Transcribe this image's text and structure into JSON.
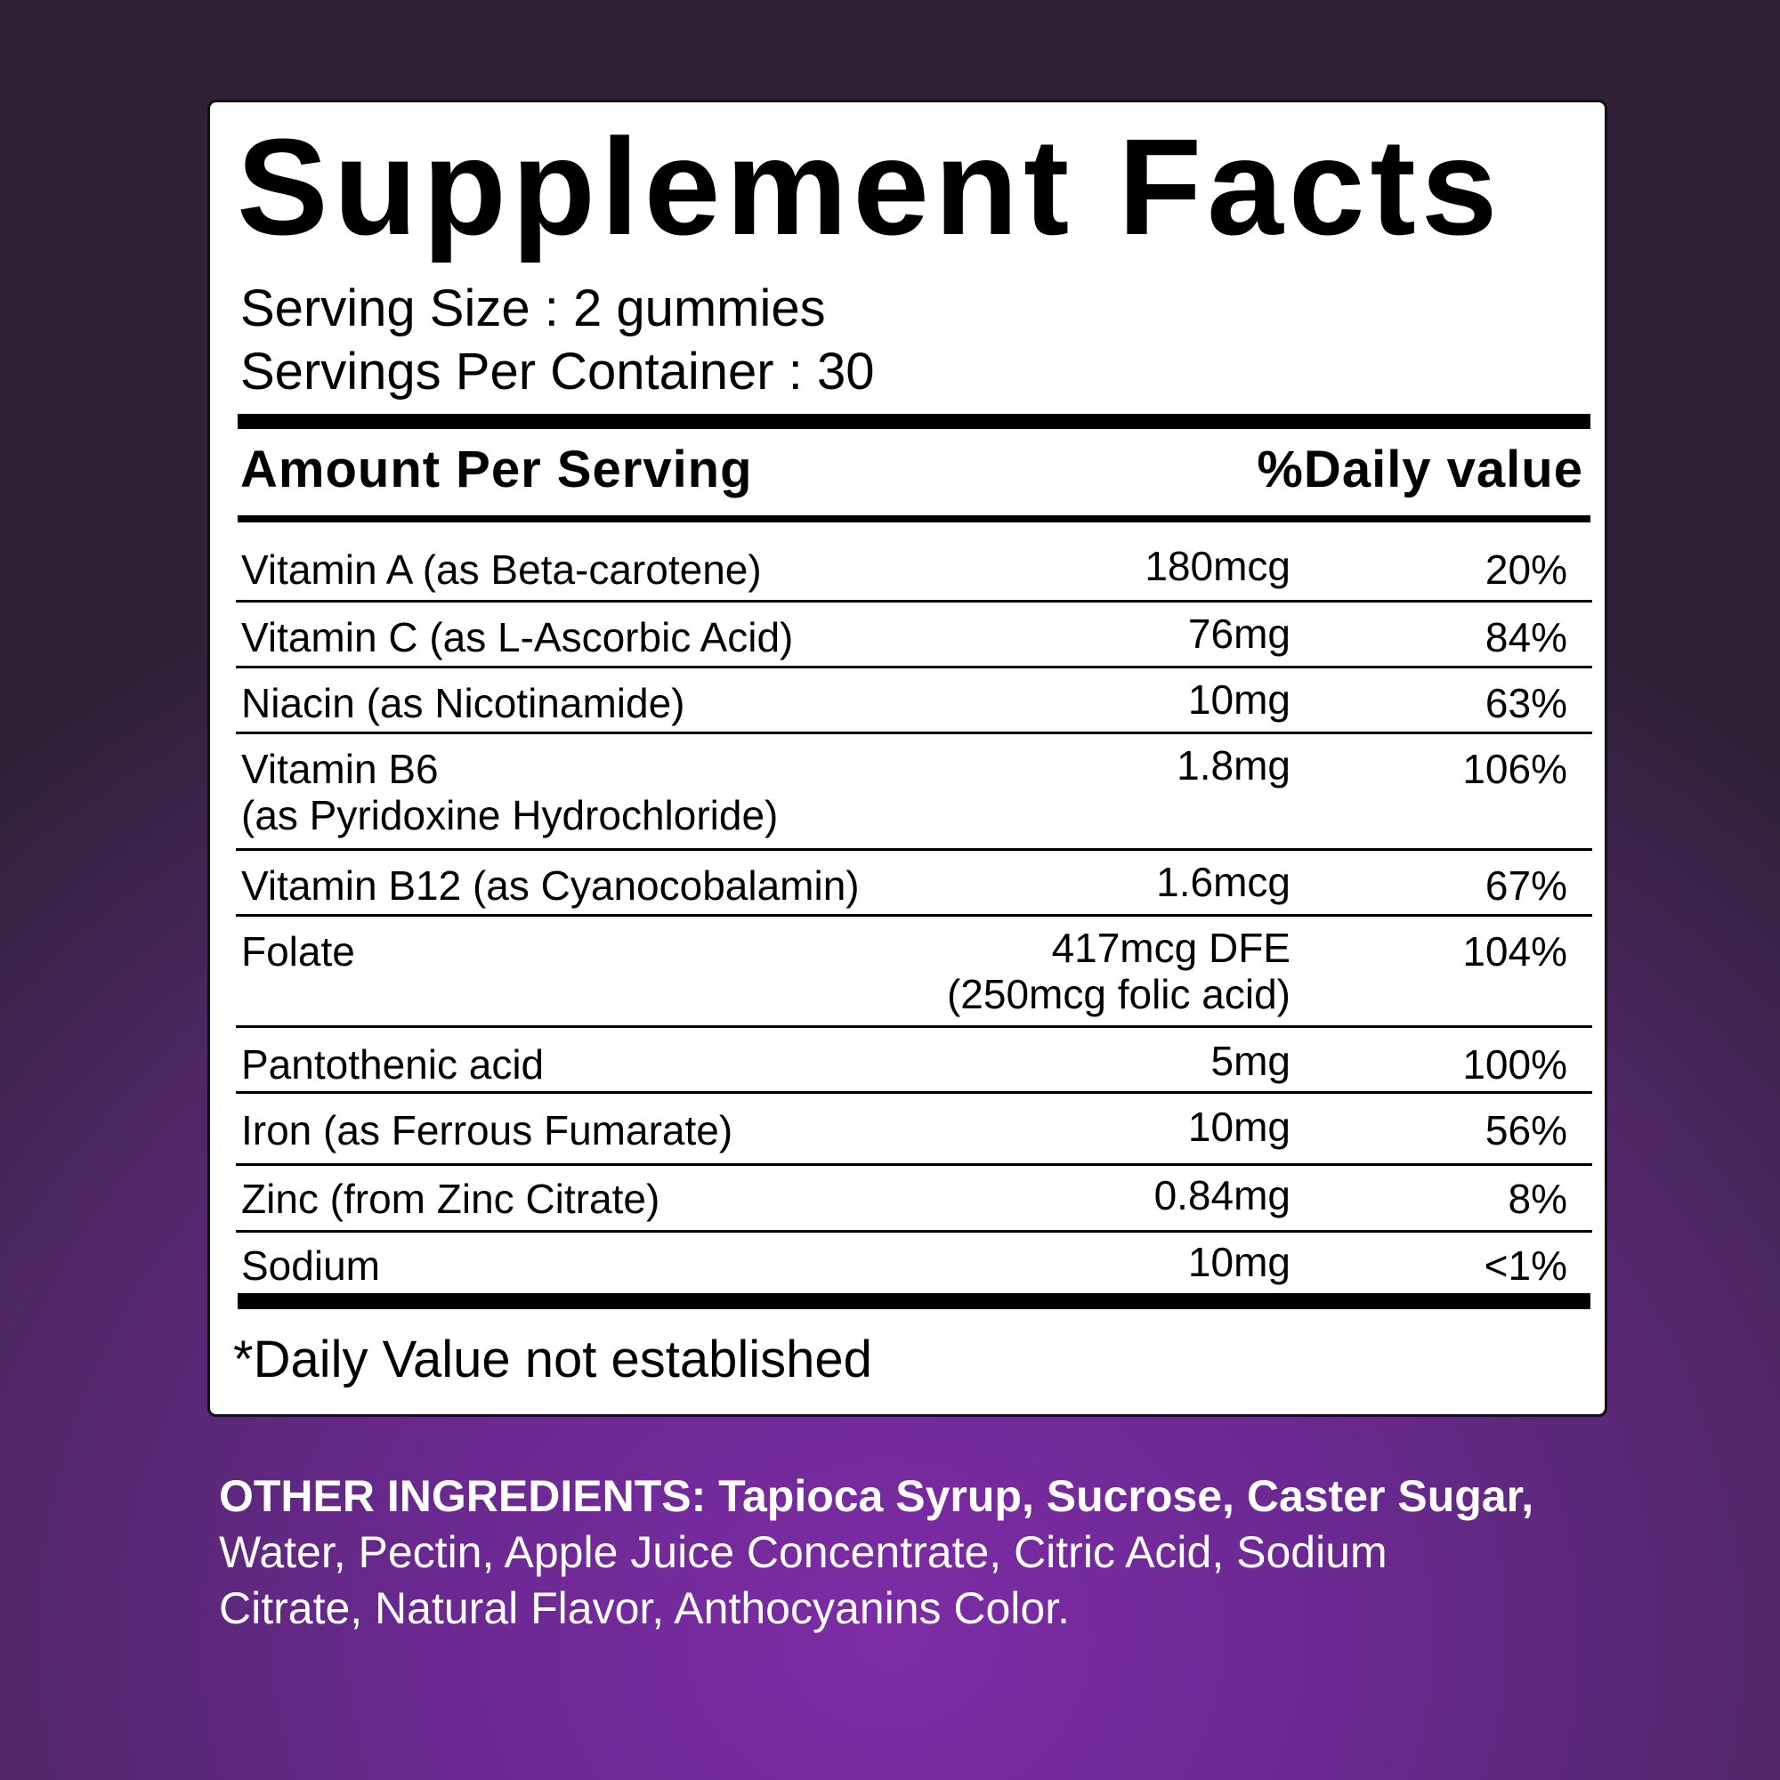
{
  "title": "Supplement Facts",
  "serving_size": "Serving Size : 2  gummies",
  "servings_per_container": "Servings Per Container : 30",
  "header": {
    "amount": "Amount Per Serving",
    "daily_value": "%Daily value"
  },
  "rows": [
    {
      "name": "Vitamin A (as Beta-carotene)",
      "amount": "180mcg",
      "dv": "20%"
    },
    {
      "name": "Vitamin C (as L-Ascorbic Acid)",
      "amount": "76mg",
      "dv": "84%"
    },
    {
      "name": "Niacin (as Nicotinamide)",
      "amount": "10mg",
      "dv": "63%"
    },
    {
      "name": "Vitamin B6",
      "name2": "(as Pyridoxine Hydrochloride)",
      "amount": "1.8mg",
      "dv": "106%"
    },
    {
      "name": "Vitamin B12 (as Cyanocobalamin)",
      "amount": "1.6mcg",
      "dv": "67%"
    },
    {
      "name": "Folate",
      "amount": "417mcg DFE",
      "amount2": "(250mcg folic acid)",
      "dv": "104%"
    },
    {
      "name": "Pantothenic acid",
      "amount": "5mg",
      "dv": "100%"
    },
    {
      "name": "Iron (as Ferrous Fumarate)",
      "amount": "10mg",
      "dv": "56%"
    },
    {
      "name": "Zinc (from Zinc Citrate)",
      "amount": "0.84mg",
      "dv": "8%"
    },
    {
      "name": "Sodium",
      "amount": "10mg",
      "dv": "<1%"
    }
  ],
  "footnote": "*Daily Value not established",
  "other_ingredients": {
    "bold": "OTHER INGREDIENTS: Tapioca Syrup, Sucrose, Caster Sugar,",
    "regular": " Water, Pectin, Apple Juice Concentrate, Citric Acid, Sodium Citrate, Natural Flavor, Anthocyanins Color."
  },
  "colors": {
    "background": "#6a2890",
    "label": "#ffffff",
    "text": "#000000"
  }
}
